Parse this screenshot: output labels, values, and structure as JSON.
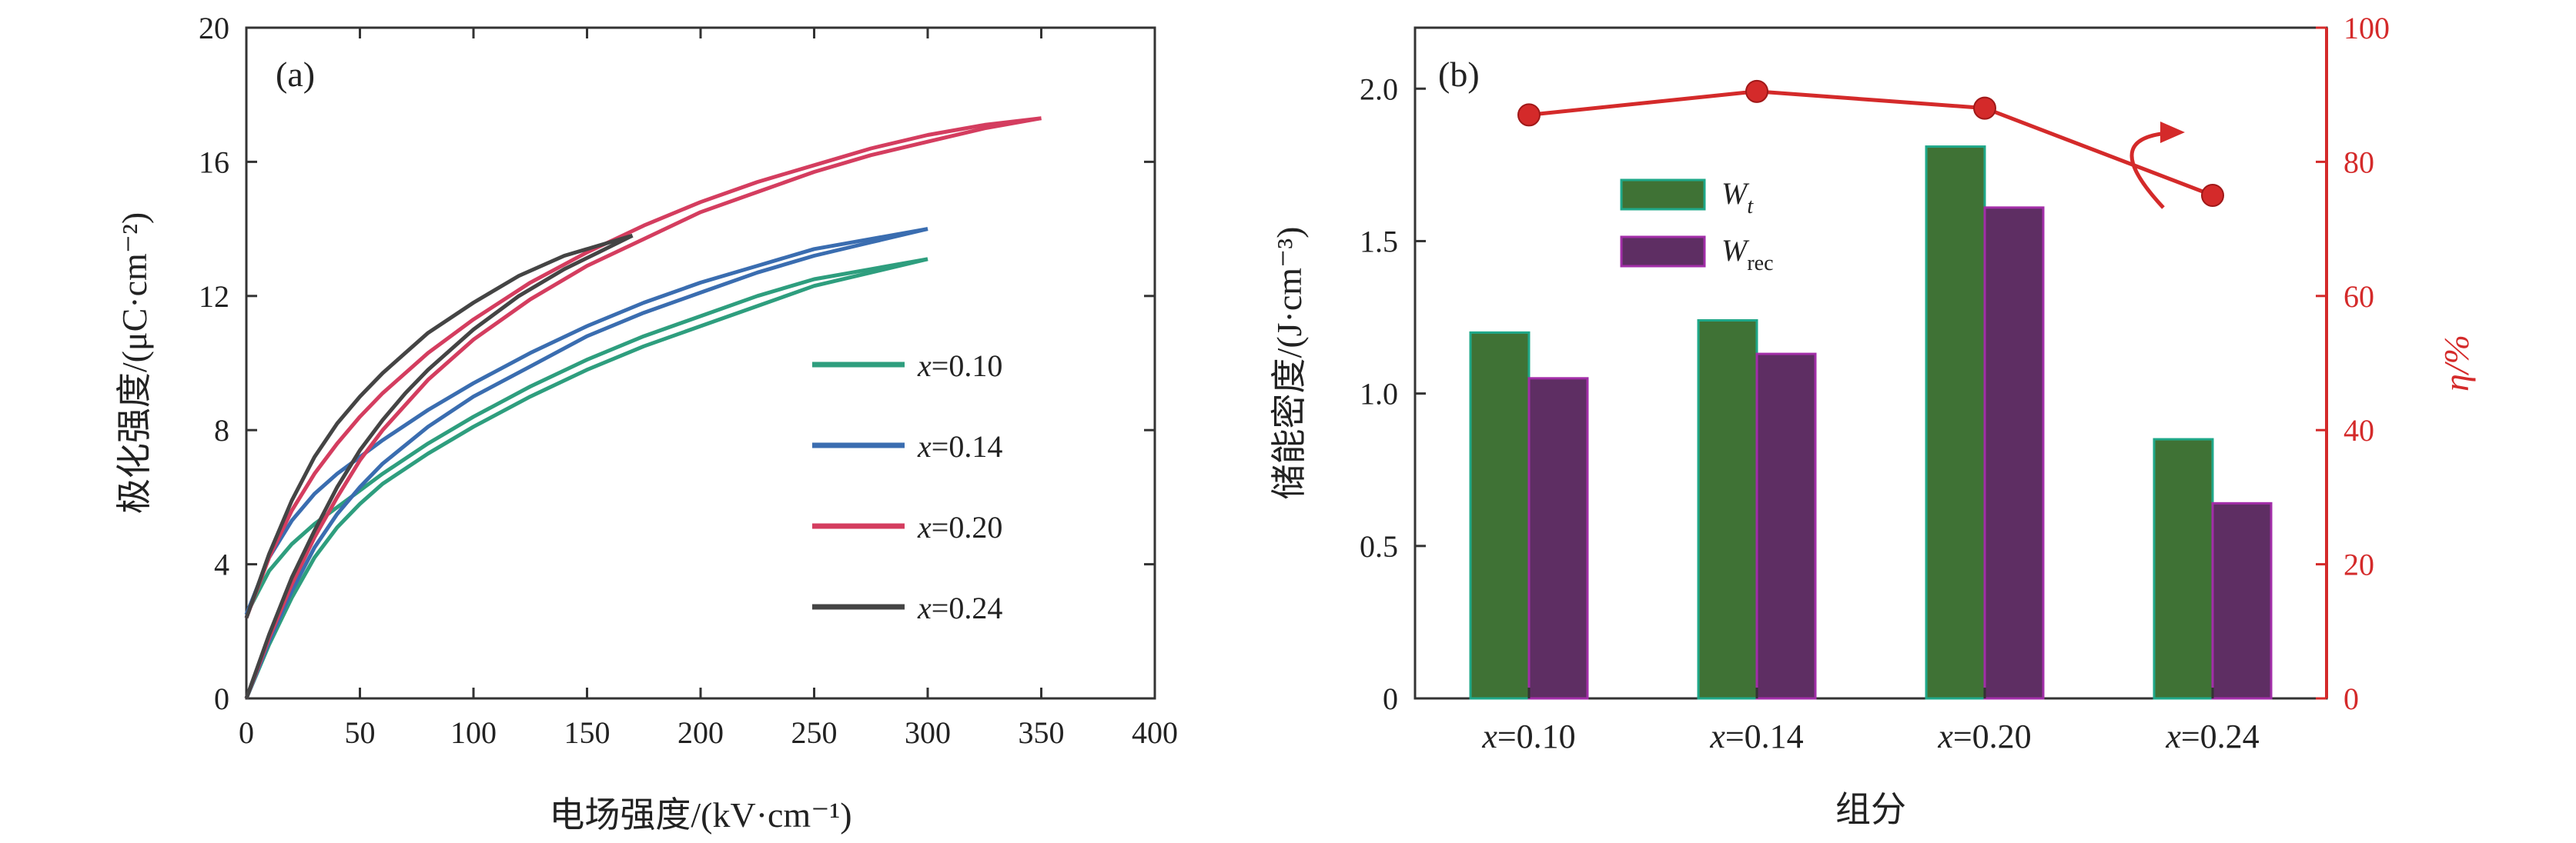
{
  "chart_data": [
    {
      "panel": "(a)",
      "type": "line",
      "xlabel": "电场强度/(kV·cm⁻¹)",
      "ylabel": "极化强度/(μC·cm⁻²)",
      "xlim": [
        0,
        400
      ],
      "ylim": [
        0,
        20
      ],
      "xticks": [
        "0",
        "50",
        "100",
        "150",
        "200",
        "250",
        "300",
        "350",
        "400"
      ],
      "yticks": [
        "0",
        "4",
        "8",
        "12",
        "16",
        "20"
      ],
      "grid": false,
      "legend_position": "center-right",
      "series": [
        {
          "name": "x=0.10",
          "var": "x",
          "eq": "=0.10",
          "color": "#2e9e7e",
          "Emax": 300,
          "Pmax": 13.1,
          "Pr": 2.5,
          "x": [
            0,
            10,
            20,
            30,
            40,
            50,
            60,
            80,
            100,
            125,
            150,
            175,
            200,
            225,
            250,
            275,
            300
          ],
          "up": [
            0.0,
            1.6,
            3.0,
            4.2,
            5.1,
            5.8,
            6.4,
            7.3,
            8.1,
            9.0,
            9.8,
            10.5,
            11.1,
            11.7,
            12.3,
            12.7,
            13.1
          ],
          "down": [
            2.5,
            3.8,
            4.6,
            5.2,
            5.7,
            6.2,
            6.7,
            7.6,
            8.4,
            9.3,
            10.1,
            10.8,
            11.4,
            12.0,
            12.5,
            12.8,
            13.1
          ]
        },
        {
          "name": "x=0.14",
          "var": "x",
          "eq": "=0.14",
          "color": "#3a6db0",
          "Emax": 300,
          "Pmax": 14.0,
          "Pr": 2.5,
          "x": [
            0,
            10,
            20,
            30,
            40,
            50,
            60,
            80,
            100,
            125,
            150,
            175,
            200,
            225,
            250,
            275,
            300
          ],
          "up": [
            0.0,
            1.7,
            3.2,
            4.5,
            5.5,
            6.3,
            7.0,
            8.1,
            9.0,
            9.9,
            10.8,
            11.5,
            12.1,
            12.7,
            13.2,
            13.6,
            14.0
          ],
          "down": [
            2.5,
            4.2,
            5.3,
            6.1,
            6.7,
            7.2,
            7.7,
            8.6,
            9.4,
            10.3,
            11.1,
            11.8,
            12.4,
            12.9,
            13.4,
            13.7,
            14.0
          ]
        },
        {
          "name": "x=0.20",
          "var": "x",
          "eq": "=0.20",
          "color": "#d43d5f",
          "Emax": 350,
          "Pmax": 17.3,
          "Pr": 2.4,
          "x": [
            0,
            10,
            20,
            30,
            40,
            50,
            60,
            80,
            100,
            125,
            150,
            175,
            200,
            225,
            250,
            275,
            300,
            325,
            350
          ],
          "up": [
            0.0,
            1.8,
            3.4,
            4.8,
            6.0,
            7.1,
            8.0,
            9.5,
            10.7,
            11.9,
            12.9,
            13.7,
            14.5,
            15.1,
            15.7,
            16.2,
            16.6,
            17.0,
            17.3
          ],
          "down": [
            2.4,
            4.2,
            5.6,
            6.7,
            7.6,
            8.4,
            9.1,
            10.3,
            11.3,
            12.4,
            13.3,
            14.1,
            14.8,
            15.4,
            15.9,
            16.4,
            16.8,
            17.1,
            17.3
          ]
        },
        {
          "name": "x=0.24",
          "var": "x",
          "eq": "=0.24",
          "color": "#444444",
          "Emax": 170,
          "Pmax": 13.8,
          "Pr": 2.4,
          "x": [
            0,
            10,
            20,
            30,
            40,
            50,
            60,
            70,
            80,
            100,
            120,
            140,
            155,
            170
          ],
          "up": [
            0.0,
            1.9,
            3.6,
            5.0,
            6.3,
            7.4,
            8.3,
            9.1,
            9.8,
            11.0,
            12.0,
            12.8,
            13.3,
            13.8
          ],
          "down": [
            2.4,
            4.3,
            5.9,
            7.2,
            8.2,
            9.0,
            9.7,
            10.3,
            10.9,
            11.8,
            12.6,
            13.2,
            13.5,
            13.8
          ]
        }
      ]
    },
    {
      "panel": "(b)",
      "type": "bar",
      "xlabel": "组分",
      "ylabel": "储能密度/(J·cm⁻³)",
      "y2label": "η/%",
      "categories": [
        "x=0.10",
        "x=0.14",
        "x=0.20",
        "x=0.24"
      ],
      "category_parts": [
        {
          "var": "x",
          "eq": "=0.10"
        },
        {
          "var": "x",
          "eq": "=0.14"
        },
        {
          "var": "x",
          "eq": "=0.20"
        },
        {
          "var": "x",
          "eq": "=0.24"
        }
      ],
      "ylim": [
        0,
        2.2
      ],
      "yticks": [
        "0",
        "0.5",
        "1.0",
        "1.5",
        "2.0"
      ],
      "y2lim": [
        0,
        100
      ],
      "y2ticks": [
        "0",
        "20",
        "40",
        "60",
        "80",
        "100"
      ],
      "legend_position": "upper-left",
      "series": [
        {
          "name": "Wt",
          "base": "W",
          "sub": "t",
          "axis": "left",
          "color": "#3f7235",
          "edge": "#1fa889",
          "values": [
            1.2,
            1.24,
            1.81,
            0.85
          ]
        },
        {
          "name": "Wrec",
          "base": "W",
          "sub": "rec",
          "axis": "left",
          "color": "#5e2e63",
          "edge": "#a22ea8",
          "values": [
            1.05,
            1.13,
            1.61,
            0.64
          ]
        },
        {
          "name": "η",
          "axis": "right",
          "type": "line",
          "color": "#d42a2a",
          "values": [
            87,
            90.5,
            88,
            75
          ]
        }
      ],
      "axis_color_right": "#d42a2a"
    }
  ]
}
